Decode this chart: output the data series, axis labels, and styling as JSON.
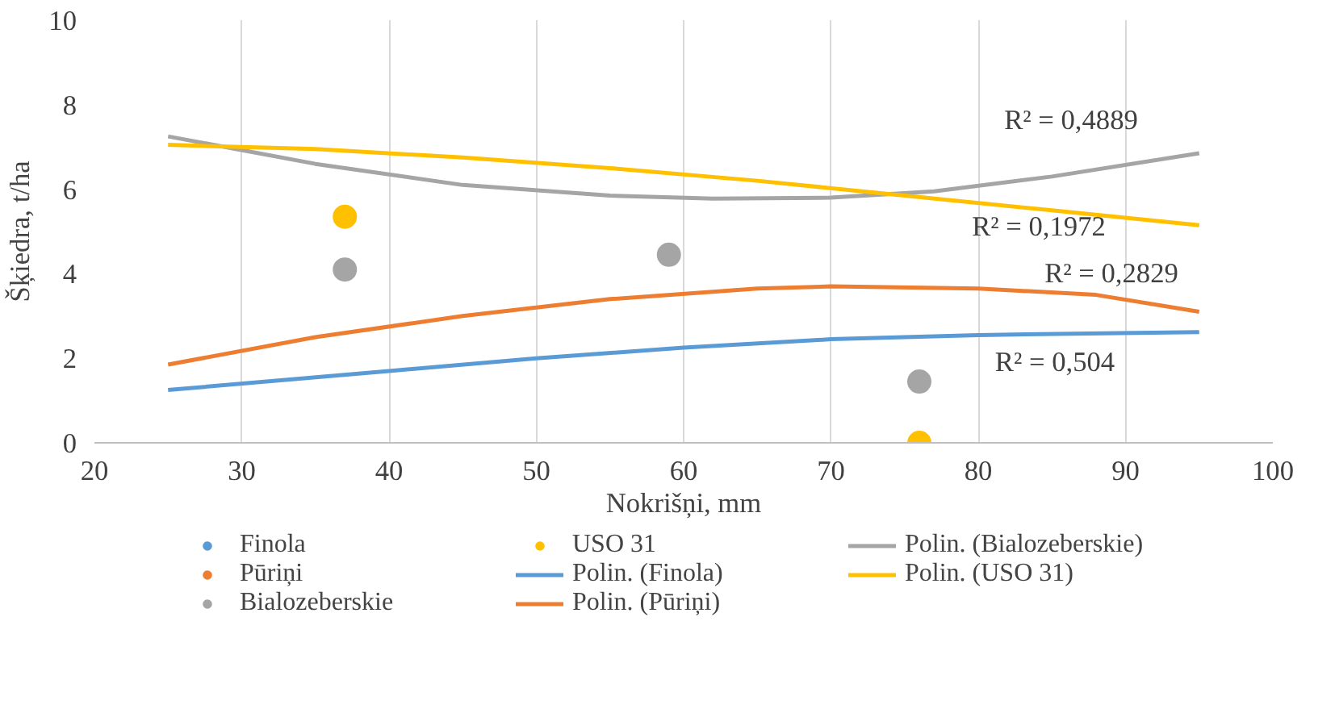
{
  "chart_data": {
    "type": "scatter",
    "xlabel": "Nokrišņi, mm",
    "ylabel": "Šķiedra, t/ha",
    "xlim": [
      20,
      100
    ],
    "xticks": [
      20,
      30,
      40,
      50,
      60,
      70,
      80,
      90,
      100
    ],
    "ylim": [
      0,
      10
    ],
    "yticks": [
      0,
      2,
      4,
      6,
      8,
      10
    ],
    "grid": "x",
    "legend": "bottom",
    "series": [
      {
        "name": "Finola",
        "color": "#5b9bd5",
        "marker": "circle"
      },
      {
        "name": "Pūriņi",
        "color": "#ed7d31",
        "marker": "circle"
      },
      {
        "name": "Bialozeberskie",
        "color": "#a5a5a5",
        "marker": "circle",
        "x": [
          37,
          59,
          76
        ],
        "values": [
          4.1,
          4.45,
          1.45
        ]
      },
      {
        "name": "USO 31",
        "color": "#ffc000",
        "marker": "circle",
        "x": [
          37,
          59,
          76
        ],
        "values": [
          5.35,
          null,
          0
        ]
      },
      {
        "name": "Polin. (Finola)",
        "color": "#5b9bd5",
        "type": "line",
        "x": [
          25,
          40,
          50,
          60,
          70,
          80,
          95
        ],
        "values": [
          1.25,
          1.7,
          2.0,
          2.25,
          2.45,
          2.55,
          2.62
        ]
      },
      {
        "name": "Polin. (Pūriņi)",
        "color": "#ed7d31",
        "type": "line",
        "x": [
          25,
          35,
          45,
          55,
          65,
          70,
          80,
          88,
          95
        ],
        "values": [
          1.85,
          2.5,
          3.0,
          3.4,
          3.65,
          3.7,
          3.65,
          3.5,
          3.1
        ]
      },
      {
        "name": "Polin. (Bialozeberskie)",
        "color": "#a5a5a5",
        "type": "line",
        "x": [
          25,
          35,
          45,
          55,
          62,
          70,
          77,
          85,
          95
        ],
        "values": [
          7.25,
          6.6,
          6.1,
          5.85,
          5.78,
          5.8,
          5.95,
          6.3,
          6.85
        ]
      },
      {
        "name": "Polin. (USO 31)",
        "color": "#ffc000",
        "type": "line",
        "x": [
          25,
          35,
          45,
          55,
          65,
          75,
          85,
          95
        ],
        "values": [
          7.05,
          6.95,
          6.75,
          6.5,
          6.2,
          5.85,
          5.5,
          5.15
        ]
      }
    ],
    "annotations": [
      "R² = 0,4889",
      "R² = 0,1972",
      "R² = 0,2829",
      "R² = 0,504"
    ]
  }
}
